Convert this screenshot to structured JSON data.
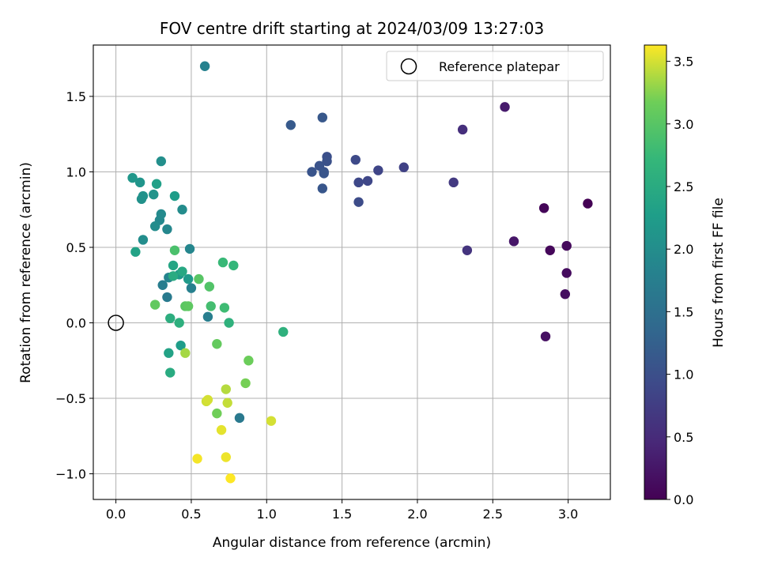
{
  "chart_data": {
    "type": "scatter",
    "title": "FOV centre drift starting at 2024/03/09 13:27:03",
    "xlabel": "Angular distance from reference (arcmin)",
    "ylabel": "Rotation from reference (arcmin)",
    "xlim": [
      -0.15,
      3.28
    ],
    "ylim": [
      -1.17,
      1.84
    ],
    "xticks": [
      "0.0",
      "0.5",
      "1.0",
      "1.5",
      "2.0",
      "2.5",
      "3.0"
    ],
    "xtick_values": [
      0,
      0.5,
      1.0,
      1.5,
      2.0,
      2.5,
      3.0
    ],
    "yticks": [
      "1.5",
      "1.0",
      "0.5",
      "0.0",
      "−0.5",
      "−1.0"
    ],
    "ytick_values": [
      1.5,
      1.0,
      0.5,
      0.0,
      -0.5,
      -1.0
    ],
    "grid": true,
    "colormap": "viridis",
    "colorbar": {
      "label": "Hours from first FF file",
      "range": [
        0.0,
        3.63
      ],
      "ticks": [
        "0.0",
        "0.5",
        "1.0",
        "1.5",
        "2.0",
        "2.5",
        "3.0",
        "3.5"
      ],
      "tick_values": [
        0.0,
        0.5,
        1.0,
        1.5,
        2.0,
        2.5,
        3.0,
        3.5
      ]
    },
    "legend": {
      "position": "top-right",
      "label": "Reference platepar"
    },
    "reference_point": {
      "x": 0.0,
      "y": 0.0
    },
    "points": [
      {
        "x": 3.13,
        "y": 0.79,
        "h": 0.0
      },
      {
        "x": 2.84,
        "y": 0.76,
        "h": 0.05
      },
      {
        "x": 2.88,
        "y": 0.48,
        "h": 0.07
      },
      {
        "x": 2.99,
        "y": 0.51,
        "h": 0.1
      },
      {
        "x": 2.99,
        "y": 0.33,
        "h": 0.12
      },
      {
        "x": 2.98,
        "y": 0.19,
        "h": 0.15
      },
      {
        "x": 2.85,
        "y": -0.09,
        "h": 0.18
      },
      {
        "x": 2.64,
        "y": 0.54,
        "h": 0.25
      },
      {
        "x": 2.58,
        "y": 1.43,
        "h": 0.3
      },
      {
        "x": 2.3,
        "y": 1.28,
        "h": 0.55
      },
      {
        "x": 2.33,
        "y": 0.48,
        "h": 0.62
      },
      {
        "x": 2.24,
        "y": 0.93,
        "h": 0.7
      },
      {
        "x": 1.91,
        "y": 1.03,
        "h": 0.8
      },
      {
        "x": 1.74,
        "y": 1.01,
        "h": 0.85
      },
      {
        "x": 1.67,
        "y": 0.94,
        "h": 0.88
      },
      {
        "x": 1.61,
        "y": 0.93,
        "h": 0.9
      },
      {
        "x": 1.59,
        "y": 1.08,
        "h": 0.92
      },
      {
        "x": 1.61,
        "y": 0.8,
        "h": 0.95
      },
      {
        "x": 1.4,
        "y": 1.1,
        "h": 1.0
      },
      {
        "x": 1.4,
        "y": 1.07,
        "h": 1.02
      },
      {
        "x": 1.38,
        "y": 1.0,
        "h": 1.04
      },
      {
        "x": 1.35,
        "y": 1.04,
        "h": 1.05
      },
      {
        "x": 1.3,
        "y": 1.0,
        "h": 1.07
      },
      {
        "x": 1.38,
        "y": 0.99,
        "h": 1.08
      },
      {
        "x": 1.37,
        "y": 0.89,
        "h": 1.1
      },
      {
        "x": 1.37,
        "y": 1.36,
        "h": 1.12
      },
      {
        "x": 1.16,
        "y": 1.31,
        "h": 1.15
      },
      {
        "x": 0.82,
        "y": -0.63,
        "h": 1.65
      },
      {
        "x": 0.61,
        "y": 0.04,
        "h": 1.75
      },
      {
        "x": 0.34,
        "y": 0.17,
        "h": 1.68
      },
      {
        "x": 0.31,
        "y": 0.25,
        "h": 1.72
      },
      {
        "x": 0.5,
        "y": 0.23,
        "h": 1.78
      },
      {
        "x": 0.59,
        "y": 1.7,
        "h": 1.8
      },
      {
        "x": 0.35,
        "y": 0.3,
        "h": 1.85
      },
      {
        "x": 0.49,
        "y": 0.49,
        "h": 1.88
      },
      {
        "x": 0.34,
        "y": 0.62,
        "h": 1.9
      },
      {
        "x": 0.29,
        "y": 0.68,
        "h": 1.92
      },
      {
        "x": 0.3,
        "y": 0.72,
        "h": 1.95
      },
      {
        "x": 0.44,
        "y": 0.75,
        "h": 1.97
      },
      {
        "x": 0.26,
        "y": 0.64,
        "h": 1.98
      },
      {
        "x": 0.18,
        "y": 0.55,
        "h": 2.0
      },
      {
        "x": 0.3,
        "y": 1.07,
        "h": 2.02
      },
      {
        "x": 0.17,
        "y": 0.82,
        "h": 2.05
      },
      {
        "x": 0.18,
        "y": 0.84,
        "h": 2.08
      },
      {
        "x": 0.25,
        "y": 0.85,
        "h": 2.1
      },
      {
        "x": 0.16,
        "y": 0.93,
        "h": 2.12
      },
      {
        "x": 0.11,
        "y": 0.96,
        "h": 2.15
      },
      {
        "x": 0.42,
        "y": 0.32,
        "h": 2.18
      },
      {
        "x": 0.48,
        "y": 0.29,
        "h": 2.2
      },
      {
        "x": 0.39,
        "y": 0.84,
        "h": 2.25
      },
      {
        "x": 0.27,
        "y": 0.92,
        "h": 2.3
      },
      {
        "x": 0.13,
        "y": 0.47,
        "h": 2.35
      },
      {
        "x": 0.38,
        "y": 0.38,
        "h": 2.4
      },
      {
        "x": 0.44,
        "y": 0.34,
        "h": 2.45
      },
      {
        "x": 0.38,
        "y": 0.31,
        "h": 2.5
      },
      {
        "x": 0.43,
        "y": -0.15,
        "h": 2.25
      },
      {
        "x": 0.35,
        "y": -0.2,
        "h": 2.35
      },
      {
        "x": 0.36,
        "y": -0.33,
        "h": 2.5
      },
      {
        "x": 0.36,
        "y": 0.03,
        "h": 2.55
      },
      {
        "x": 0.42,
        "y": 0.0,
        "h": 2.58
      },
      {
        "x": 0.78,
        "y": 0.38,
        "h": 2.7
      },
      {
        "x": 0.71,
        "y": 0.4,
        "h": 2.75
      },
      {
        "x": 1.11,
        "y": -0.06,
        "h": 2.6
      },
      {
        "x": 0.75,
        "y": 0.0,
        "h": 2.62
      },
      {
        "x": 0.72,
        "y": 0.1,
        "h": 2.8
      },
      {
        "x": 0.63,
        "y": 0.11,
        "h": 2.85
      },
      {
        "x": 0.39,
        "y": 0.48,
        "h": 2.9
      },
      {
        "x": 0.62,
        "y": 0.24,
        "h": 2.95
      },
      {
        "x": 0.55,
        "y": 0.29,
        "h": 3.0
      },
      {
        "x": 0.46,
        "y": 0.11,
        "h": 3.02
      },
      {
        "x": 0.48,
        "y": 0.11,
        "h": 3.05
      },
      {
        "x": 0.26,
        "y": 0.12,
        "h": 3.08
      },
      {
        "x": 0.67,
        "y": -0.14,
        "h": 3.1
      },
      {
        "x": 0.88,
        "y": -0.25,
        "h": 3.15
      },
      {
        "x": 0.67,
        "y": -0.6,
        "h": 3.18
      },
      {
        "x": 0.86,
        "y": -0.4,
        "h": 3.2
      },
      {
        "x": 0.46,
        "y": -0.2,
        "h": 3.35
      },
      {
        "x": 0.73,
        "y": -0.44,
        "h": 3.4
      },
      {
        "x": 0.74,
        "y": -0.53,
        "h": 3.45
      },
      {
        "x": 0.6,
        "y": -0.52,
        "h": 3.48
      },
      {
        "x": 0.61,
        "y": -0.51,
        "h": 3.5
      },
      {
        "x": 0.7,
        "y": -0.71,
        "h": 3.55
      },
      {
        "x": 1.03,
        "y": -0.65,
        "h": 3.5
      },
      {
        "x": 0.73,
        "y": -0.89,
        "h": 3.58
      },
      {
        "x": 0.54,
        "y": -0.9,
        "h": 3.6
      },
      {
        "x": 0.76,
        "y": -1.03,
        "h": 3.63
      }
    ]
  }
}
